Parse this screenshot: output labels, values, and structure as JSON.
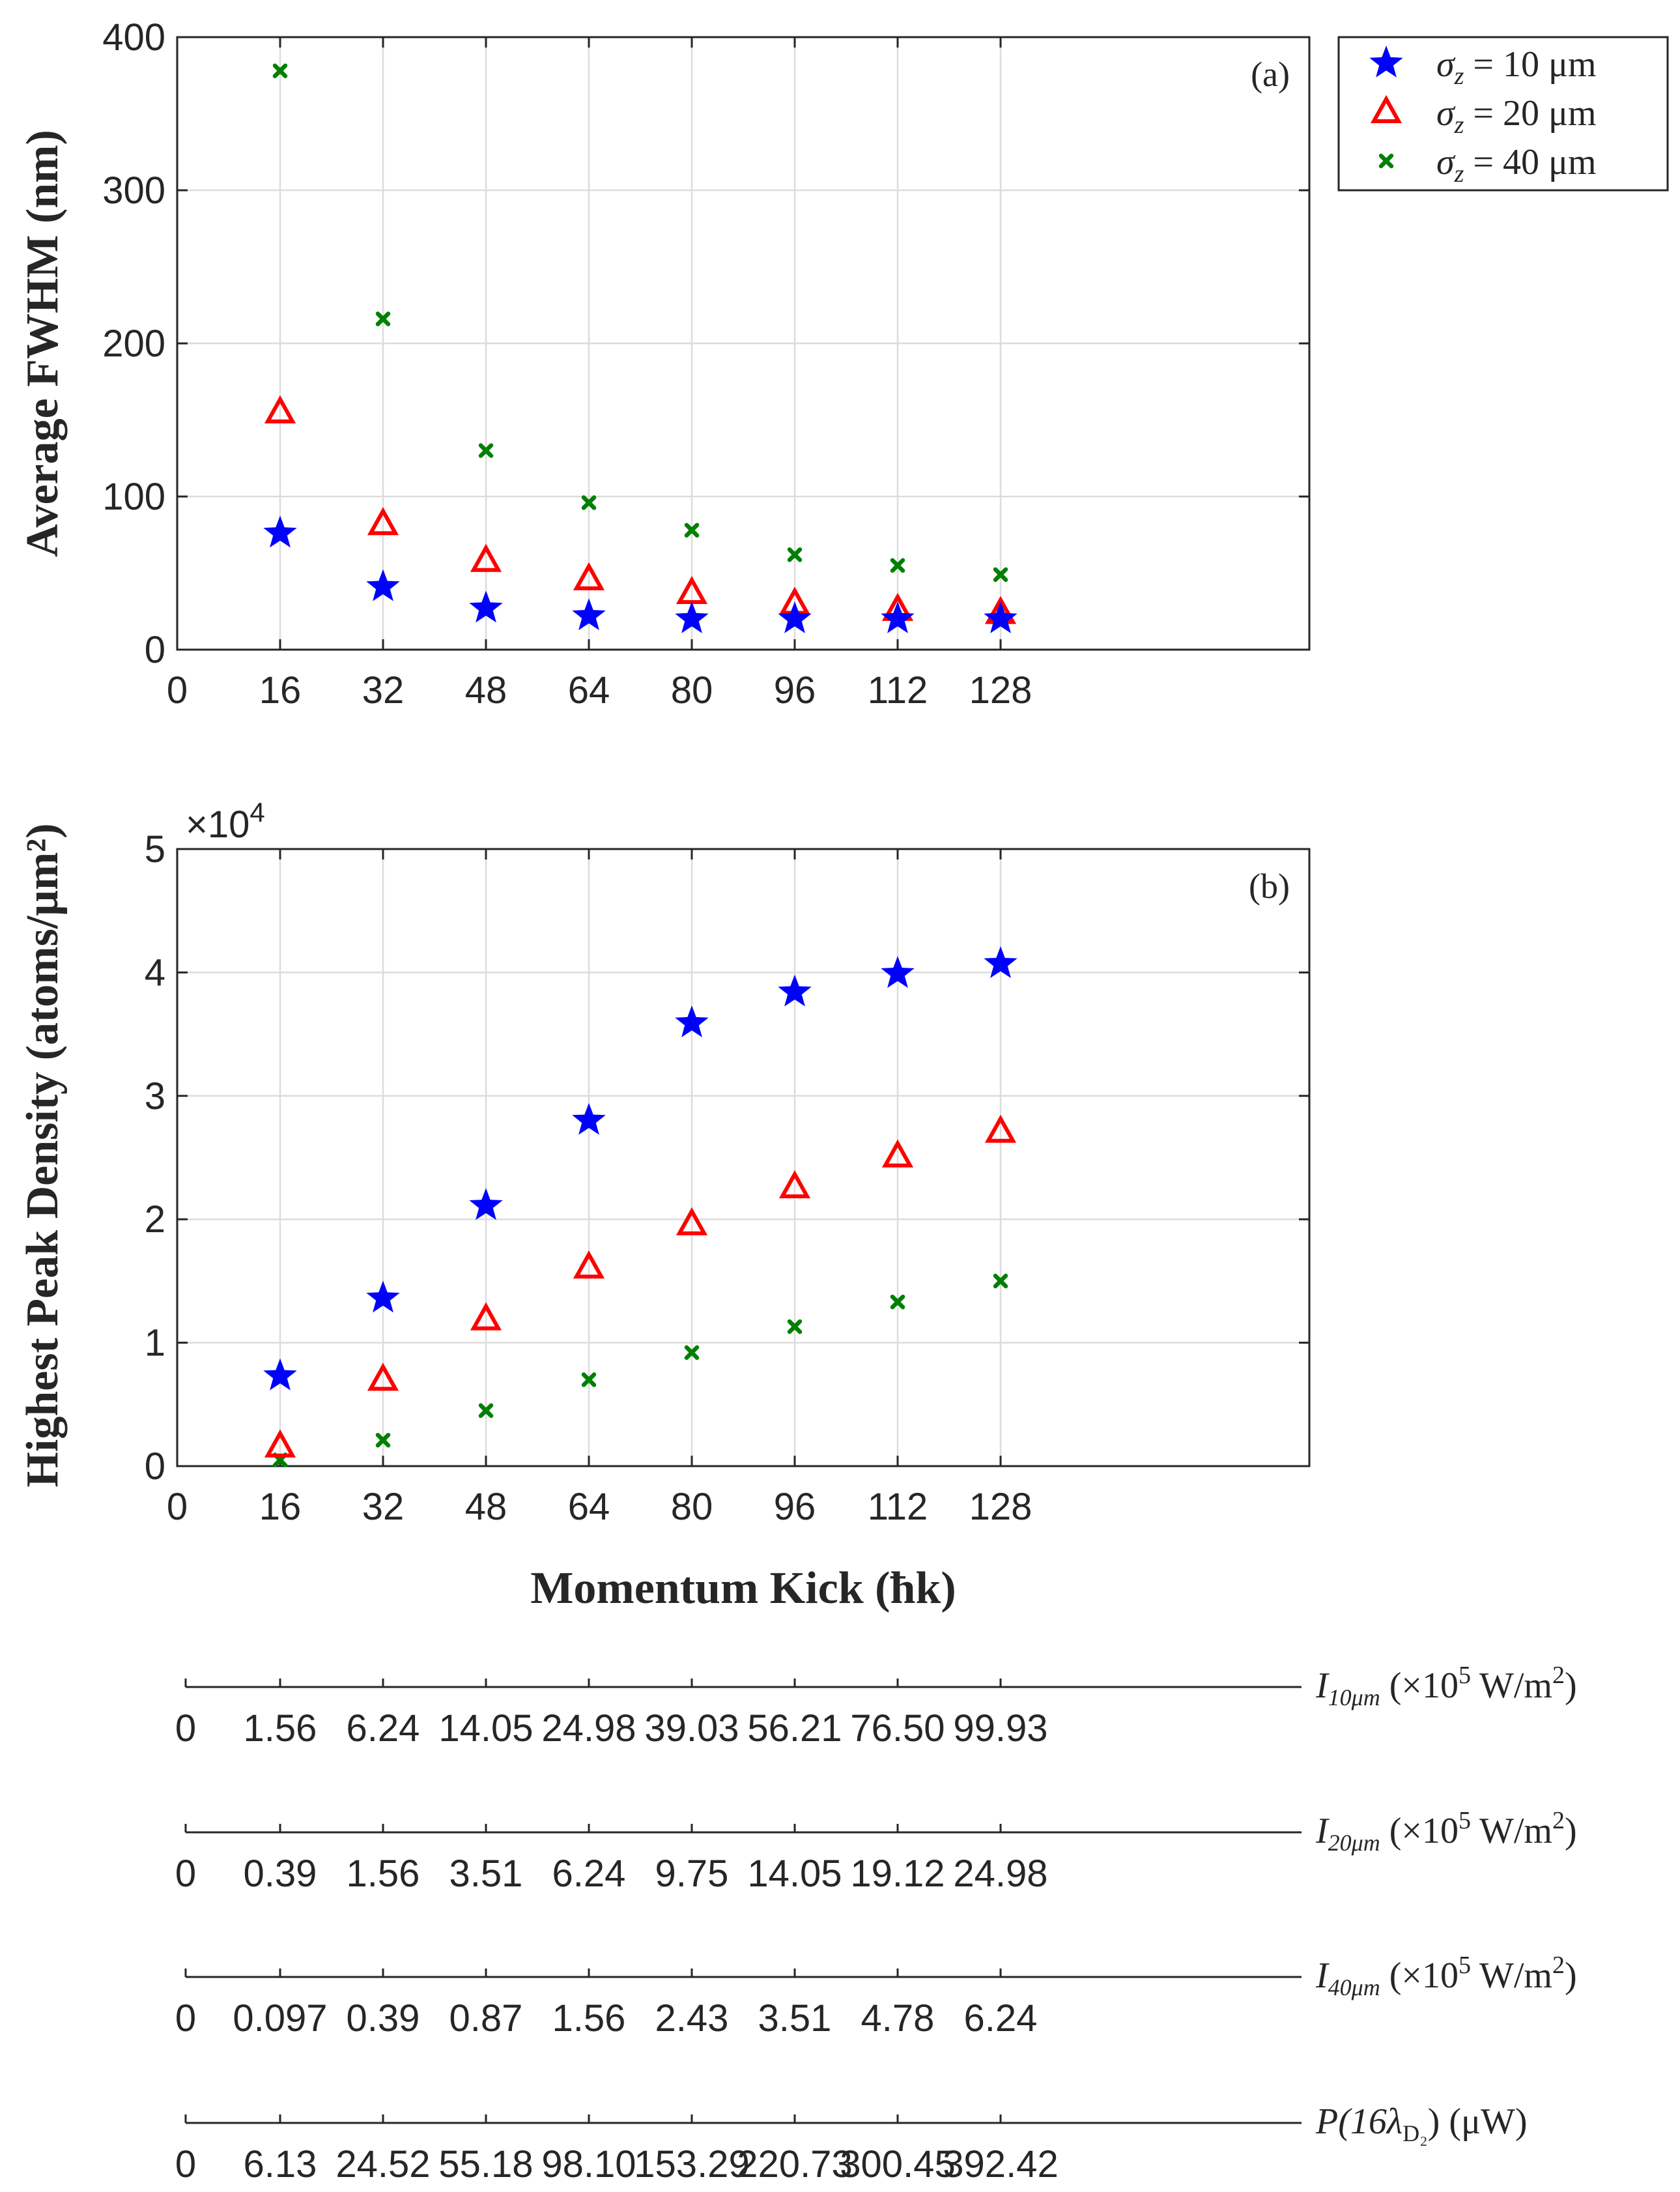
{
  "chart_data": [
    {
      "type": "scatter",
      "panel_label": "(a)",
      "ylabel": "Average FWHM (nm)",
      "xlabel": "",
      "xlim": [
        0,
        176
      ],
      "ylim": [
        0,
        400
      ],
      "xticks": [
        "0",
        "16",
        "32",
        "48",
        "64",
        "80",
        "96",
        "112",
        "128"
      ],
      "yticks": [
        "0",
        "100",
        "200",
        "300",
        "400"
      ],
      "x": [
        16,
        32,
        48,
        64,
        80,
        96,
        112,
        128
      ],
      "series": [
        {
          "name": "σz = 10 μm",
          "marker": "star",
          "color": "#0000ff",
          "values": [
            76,
            41,
            27,
            22,
            20,
            20,
            20,
            20
          ]
        },
        {
          "name": "σz = 20 μm",
          "marker": "triangle",
          "color": "#ff0000",
          "values": [
            155,
            82,
            58,
            46,
            37,
            30,
            26,
            24
          ]
        },
        {
          "name": "σz = 40 μm",
          "marker": "x",
          "color": "#008000",
          "values": [
            378,
            216,
            130,
            96,
            78,
            62,
            55,
            49
          ]
        }
      ],
      "legend_position": "outside-top-right",
      "grid": true
    },
    {
      "type": "scatter",
      "panel_label": "(b)",
      "ylabel": "Highest Peak Density (atoms/μm²)",
      "xlabel": "Momentum Kick (ħk)",
      "xlim": [
        0,
        176
      ],
      "ylim": [
        0,
        50000
      ],
      "multiplier_base": "×10",
      "multiplier_exp": "4",
      "xticks": [
        "0",
        "16",
        "32",
        "48",
        "64",
        "80",
        "96",
        "112",
        "128"
      ],
      "yticks": [
        "0",
        "1",
        "2",
        "3",
        "4",
        "5"
      ],
      "x": [
        16,
        32,
        48,
        64,
        80,
        96,
        112,
        128
      ],
      "series": [
        {
          "name": "σz = 10 μm",
          "marker": "star",
          "color": "#0000ff",
          "values": [
            7300,
            13600,
            21100,
            28000,
            35900,
            38400,
            39900,
            40700
          ]
        },
        {
          "name": "σz = 20 μm",
          "marker": "triangle",
          "color": "#ff0000",
          "values": [
            1600,
            7000,
            11900,
            16100,
            19600,
            22600,
            25100,
            27100
          ]
        },
        {
          "name": "σz = 40 μm",
          "marker": "x",
          "color": "#008000",
          "values": [
            500,
            2100,
            4500,
            7000,
            9200,
            11300,
            13300,
            15000
          ]
        }
      ],
      "grid": true
    }
  ],
  "legend": {
    "items": [
      {
        "sym": "σ",
        "sub": "z",
        "rest": " = 10 μm"
      },
      {
        "sym": "σ",
        "sub": "z",
        "rest": " = 20 μm"
      },
      {
        "sym": "σ",
        "sub": "z",
        "rest": " = 40 μm"
      }
    ]
  },
  "scales": [
    {
      "label_main": "I",
      "label_sub": "10μm",
      "label_unit_a": " (×10",
      "label_unit_exp": "5",
      "label_unit_b": " W/m",
      "label_unit_exp2": "2",
      "label_unit_c": ")",
      "values": [
        "0",
        "1.56",
        "6.24",
        "14.05",
        "24.98",
        "39.03",
        "56.21",
        "76.50",
        "99.93"
      ]
    },
    {
      "label_main": "I",
      "label_sub": "20μm",
      "label_unit_a": " (×10",
      "label_unit_exp": "5",
      "label_unit_b": " W/m",
      "label_unit_exp2": "2",
      "label_unit_c": ")",
      "values": [
        "0",
        "0.39",
        "1.56",
        "3.51",
        "6.24",
        "9.75",
        "14.05",
        "19.12",
        "24.98"
      ]
    },
    {
      "label_main": "I",
      "label_sub": "40μm",
      "label_unit_a": " (×10",
      "label_unit_exp": "5",
      "label_unit_b": " W/m",
      "label_unit_exp2": "2",
      "label_unit_c": ")",
      "values": [
        "0",
        "0.097",
        "0.39",
        "0.87",
        "1.56",
        "2.43",
        "3.51",
        "4.78",
        "6.24"
      ]
    },
    {
      "label_main": "P(16λ",
      "label_sub": "D₂",
      "label_unit_a": ") (μW)",
      "label_unit_exp": "",
      "label_unit_b": "",
      "label_unit_exp2": "",
      "label_unit_c": "",
      "values": [
        "0",
        "6.13",
        "24.52",
        "55.18",
        "98.10",
        "153.29",
        "220.73",
        "300.45",
        "392.42"
      ]
    }
  ]
}
